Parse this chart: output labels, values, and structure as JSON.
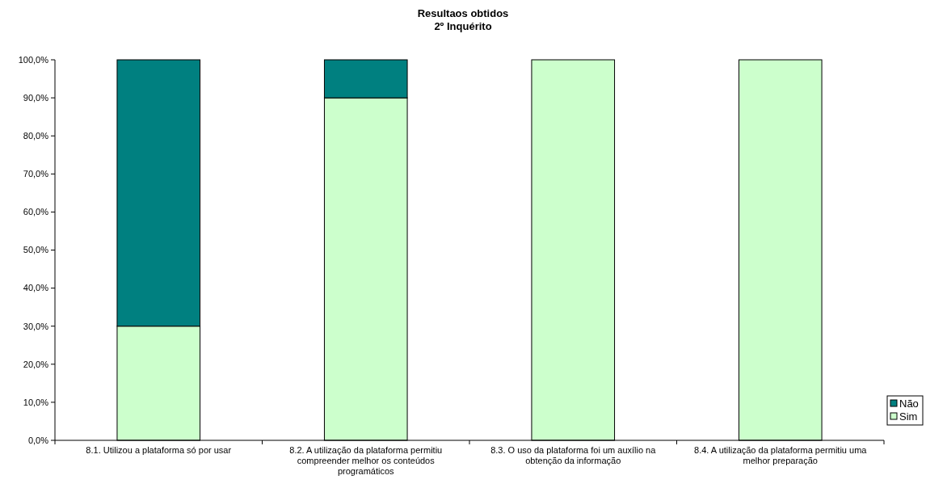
{
  "chart_data": {
    "type": "bar",
    "title": "Resultaos obtidos",
    "subtitle": "2º Inquérito",
    "stacked": true,
    "legend": "bottom right",
    "categories": [
      "8.1. Utilizou a plataforma só por usar",
      "8.2. A utilização da plataforma permitiu compreender melhor os conteúdos programáticos",
      "8.3. O uso da plataforma foi um auxílio na obtenção da informação",
      "8.4. A utilização da plataforma permitiu uma melhor preparação"
    ],
    "series": [
      {
        "name": "Sim",
        "color": "#ccffcc",
        "values": [
          30,
          90,
          100,
          100
        ]
      },
      {
        "name": "Não",
        "color": "#008080",
        "values": [
          70,
          10,
          0,
          0
        ]
      }
    ],
    "ylim": [
      0,
      100
    ],
    "yticks": [
      {
        "value": 0,
        "label": "0,0%"
      },
      {
        "value": 10,
        "label": "10,0%"
      },
      {
        "value": 20,
        "label": "20,0%"
      },
      {
        "value": 30,
        "label": "30,0%"
      },
      {
        "value": 40,
        "label": "40,0%"
      },
      {
        "value": 50,
        "label": "50,0%"
      },
      {
        "value": 60,
        "label": "60,0%"
      },
      {
        "value": 70,
        "label": "70,0%"
      },
      {
        "value": 80,
        "label": "80,0%"
      },
      {
        "value": 90,
        "label": "90,0%"
      },
      {
        "value": 100,
        "label": "100,0%"
      }
    ]
  }
}
